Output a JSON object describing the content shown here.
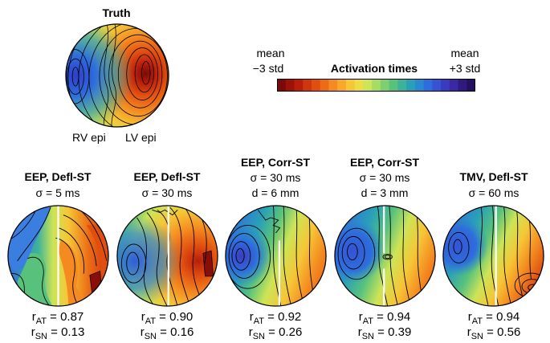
{
  "truth": {
    "title": "Truth",
    "label_rv": "RV epi",
    "label_lv": "LV epi"
  },
  "colorbar": {
    "title": "Activation times",
    "left_label_line1": "mean",
    "left_label_line2": "−3 std",
    "right_label_line1": "mean",
    "right_label_line2": "+3 std",
    "colors": [
      "#7a0a0a",
      "#9a1208",
      "#b81e0a",
      "#d0360c",
      "#e04e10",
      "#ec6c16",
      "#f48a20",
      "#f8a82a",
      "#f6c636",
      "#eedc46",
      "#cde456",
      "#a6dc62",
      "#7ed06e",
      "#58c27c",
      "#3cb29a",
      "#2aa0b8",
      "#2a88d0",
      "#2e6edc",
      "#3454d4",
      "#3a3cc0",
      "#3a28a4",
      "#301a80",
      "#241060"
    ]
  },
  "panels": [
    {
      "title_line1": "EEP, Defl-ST",
      "title_line2": "σ = 5 ms",
      "title_line3": "",
      "r_at_label": "r",
      "r_at_sub": "AT",
      "r_at_value": "= 0.87",
      "r_sn_label": "r",
      "r_sn_sub": "SN",
      "r_sn_value": "= 0.13",
      "r_at": 0.87,
      "r_sn": 0.13
    },
    {
      "title_line1": "EEP, Defl-ST",
      "title_line2": "σ = 30 ms",
      "title_line3": "",
      "r_at_label": "r",
      "r_at_sub": "AT",
      "r_at_value": "= 0.90",
      "r_sn_label": "r",
      "r_sn_sub": "SN",
      "r_sn_value": "= 0.16",
      "r_at": 0.9,
      "r_sn": 0.16
    },
    {
      "title_line1": "EEP, Corr-ST",
      "title_line2": "σ = 30 ms",
      "title_line3": "d = 6 mm",
      "r_at_label": "r",
      "r_at_sub": "AT",
      "r_at_value": "= 0.92",
      "r_sn_label": "r",
      "r_sn_sub": "SN",
      "r_sn_value": "= 0.26",
      "r_at": 0.92,
      "r_sn": 0.26
    },
    {
      "title_line1": "EEP, Corr-ST",
      "title_line2": "σ = 30 ms",
      "title_line3": "d = 3 mm",
      "r_at_label": "r",
      "r_at_sub": "AT",
      "r_at_value": "= 0.94",
      "r_sn_label": "r",
      "r_sn_sub": "SN",
      "r_sn_value": "= 0.39",
      "r_at": 0.94,
      "r_sn": 0.39
    },
    {
      "title_line1": "TMV, Defl-ST",
      "title_line2": "σ = 60 ms",
      "title_line3": "",
      "r_at_label": "r",
      "r_at_sub": "AT",
      "r_at_value": "= 0.94",
      "r_sn_label": "r",
      "r_sn_sub": "SN",
      "r_sn_value": "= 0.56",
      "r_at": 0.94,
      "r_sn": 0.56
    }
  ]
}
